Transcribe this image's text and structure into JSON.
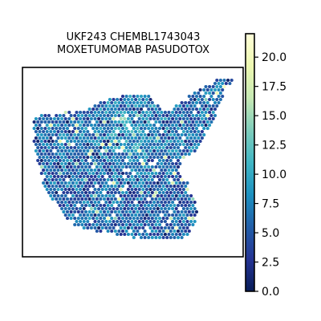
{
  "chart_data": {
    "type": "heatmap",
    "subtype": "spatial-hexbin",
    "title_lines": [
      "UKF243 CHEMBL1743043",
      "MOXETUMOMAB PASUDOTOX"
    ],
    "colormap": "YlGnBu_r",
    "colormap_stops": [
      "#081d58",
      "#253494",
      "#225ea8",
      "#1d91c0",
      "#41b6c4",
      "#7fcdbb",
      "#c7e9b4",
      "#edf8b1",
      "#ffffd9"
    ],
    "value_range": [
      0,
      22
    ],
    "colorbar_ticks": [
      "0.0",
      "2.5",
      "5.0",
      "7.5",
      "10.0",
      "12.5",
      "15.0",
      "17.5",
      "20.0"
    ],
    "colorbar_tick_values": [
      0,
      2.5,
      5,
      7.5,
      10,
      12.5,
      15,
      17.5,
      20
    ],
    "typical_value": 6,
    "xlabel": "",
    "ylabel": "",
    "axes_ticks_visible": false,
    "grid": false,
    "legend": "colorbar-right"
  }
}
